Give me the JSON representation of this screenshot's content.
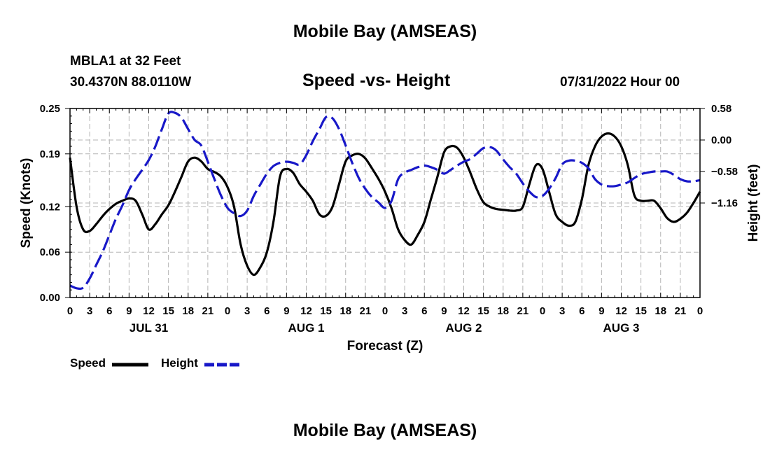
{
  "page": {
    "title": "Mobile Bay (AMSEAS)",
    "station_line": "MBLA1 at 32 Feet",
    "coords_line": "30.4370N  88.0110W",
    "subtitle": "Speed -vs- Height",
    "datetime": "07/31/2022 Hour 00",
    "footer_title": "Mobile Bay (AMSEAS)"
  },
  "chart_data": {
    "type": "line",
    "title": "Speed -vs- Height",
    "xlabel": "Forecast (Z)",
    "ylabel_left": "Speed (Knots)",
    "ylabel_right": "Height (feet)",
    "xlim": [
      0,
      96
    ],
    "ylim_left": [
      0,
      0.25
    ],
    "ylim_right": [
      -2.9,
      0.58
    ],
    "x_ticks": [
      0,
      3,
      6,
      9,
      12,
      15,
      18,
      21,
      24,
      27,
      30,
      33,
      36,
      39,
      42,
      45,
      48,
      51,
      54,
      57,
      60,
      63,
      66,
      69,
      72,
      75,
      78,
      81,
      84,
      87,
      90,
      93,
      96
    ],
    "x_tick_labels": [
      "0",
      "3",
      "6",
      "9",
      "12",
      "15",
      "18",
      "21",
      "0",
      "3",
      "6",
      "9",
      "12",
      "15",
      "18",
      "21",
      "0",
      "3",
      "6",
      "9",
      "12",
      "15",
      "18",
      "21",
      "0",
      "3",
      "6",
      "9",
      "12",
      "15",
      "18",
      "21",
      "0"
    ],
    "left_ticks": [
      0.0,
      0.06,
      0.12,
      0.19,
      0.25
    ],
    "left_tick_labels": [
      "0.00",
      "0.06",
      "0.12",
      "0.19",
      "0.25"
    ],
    "right_ticks": [
      -1.16,
      -0.58,
      0.0,
      0.58
    ],
    "right_tick_labels": [
      "−1.16",
      "−0.58",
      "0.00",
      "0.58"
    ],
    "day_labels": [
      {
        "x": 12,
        "text": "JUL 31"
      },
      {
        "x": 36,
        "text": "AUG 1"
      },
      {
        "x": 60,
        "text": "AUG 2"
      },
      {
        "x": 84,
        "text": "AUG 3"
      }
    ],
    "grid": true,
    "series": [
      {
        "name": "Speed",
        "axis": "left",
        "color": "#000000",
        "dash": "solid",
        "x": [
          0,
          1,
          2,
          3,
          4,
          5,
          6,
          7,
          8,
          9,
          10,
          11,
          12,
          13,
          14,
          15,
          16,
          17,
          18,
          19,
          20,
          21,
          22,
          23,
          24,
          25,
          26,
          27,
          28,
          29,
          30,
          31,
          32,
          33,
          34,
          35,
          36,
          37,
          38,
          39,
          40,
          41,
          42,
          43,
          44,
          45,
          46,
          47,
          48,
          49,
          50,
          51,
          52,
          53,
          54,
          55,
          56,
          57,
          58,
          59,
          60,
          61,
          62,
          63,
          64,
          65,
          66,
          67,
          68,
          69,
          70,
          71,
          72,
          73,
          74,
          75,
          76,
          77,
          78,
          79,
          80,
          81,
          82,
          83,
          84,
          85,
          86,
          87,
          88,
          89,
          90,
          91,
          92,
          93,
          94,
          95,
          96
        ],
        "values": [
          0.185,
          0.12,
          0.09,
          0.088,
          0.097,
          0.108,
          0.117,
          0.124,
          0.128,
          0.131,
          0.128,
          0.11,
          0.09,
          0.097,
          0.11,
          0.122,
          0.14,
          0.16,
          0.18,
          0.185,
          0.18,
          0.17,
          0.166,
          0.16,
          0.146,
          0.12,
          0.07,
          0.042,
          0.03,
          0.04,
          0.06,
          0.1,
          0.16,
          0.17,
          0.165,
          0.15,
          0.14,
          0.128,
          0.11,
          0.108,
          0.12,
          0.15,
          0.18,
          0.188,
          0.19,
          0.184,
          0.171,
          0.157,
          0.14,
          0.118,
          0.09,
          0.076,
          0.07,
          0.083,
          0.1,
          0.13,
          0.16,
          0.192,
          0.2,
          0.198,
          0.185,
          0.165,
          0.143,
          0.126,
          0.12,
          0.117,
          0.116,
          0.115,
          0.115,
          0.12,
          0.15,
          0.175,
          0.17,
          0.14,
          0.11,
          0.1,
          0.095,
          0.1,
          0.13,
          0.175,
          0.2,
          0.213,
          0.217,
          0.213,
          0.2,
          0.175,
          0.135,
          0.128,
          0.128,
          0.128,
          0.118,
          0.105,
          0.1,
          0.104,
          0.112,
          0.125,
          0.14
        ],
        "legend_label": "Speed"
      },
      {
        "name": "Height",
        "axis": "right",
        "color": "#1818c8",
        "dash": "dashed",
        "x": [
          0,
          1,
          2,
          3,
          4,
          5,
          6,
          7,
          8,
          9,
          10,
          11,
          12,
          13,
          14,
          15,
          16,
          17,
          18,
          19,
          20,
          21,
          22,
          23,
          24,
          25,
          26,
          27,
          28,
          29,
          30,
          31,
          32,
          33,
          34,
          35,
          36,
          37,
          38,
          39,
          40,
          41,
          42,
          43,
          44,
          45,
          46,
          47,
          48,
          49,
          50,
          51,
          52,
          53,
          54,
          55,
          56,
          57,
          58,
          59,
          60,
          61,
          62,
          63,
          64,
          65,
          66,
          67,
          68,
          69,
          70,
          71,
          72,
          73,
          74,
          75,
          76,
          77,
          78,
          79,
          80,
          81,
          82,
          83,
          84,
          85,
          86,
          87,
          88,
          89,
          90,
          91,
          92,
          93,
          94,
          95,
          96
        ],
        "values": [
          -2.68,
          -2.73,
          -2.72,
          -2.55,
          -2.3,
          -2.05,
          -1.75,
          -1.45,
          -1.2,
          -0.92,
          -0.72,
          -0.55,
          -0.37,
          -0.12,
          0.2,
          0.49,
          0.5,
          0.41,
          0.2,
          0.0,
          -0.1,
          -0.4,
          -0.72,
          -1.02,
          -1.25,
          -1.35,
          -1.4,
          -1.3,
          -1.03,
          -0.82,
          -0.62,
          -0.48,
          -0.42,
          -0.4,
          -0.42,
          -0.45,
          -0.28,
          -0.02,
          0.2,
          0.42,
          0.4,
          0.2,
          -0.1,
          -0.42,
          -0.7,
          -0.9,
          -1.05,
          -1.15,
          -1.25,
          -1.12,
          -0.72,
          -0.6,
          -0.55,
          -0.5,
          -0.47,
          -0.5,
          -0.55,
          -0.62,
          -0.55,
          -0.47,
          -0.4,
          -0.35,
          -0.25,
          -0.15,
          -0.13,
          -0.2,
          -0.36,
          -0.5,
          -0.62,
          -0.8,
          -0.95,
          -1.05,
          -1.03,
          -0.9,
          -0.7,
          -0.45,
          -0.38,
          -0.38,
          -0.42,
          -0.52,
          -0.72,
          -0.82,
          -0.85,
          -0.85,
          -0.82,
          -0.78,
          -0.7,
          -0.63,
          -0.6,
          -0.58,
          -0.58,
          -0.58,
          -0.64,
          -0.72,
          -0.76,
          -0.76,
          -0.74
        ],
        "legend_label": "Height"
      }
    ]
  }
}
